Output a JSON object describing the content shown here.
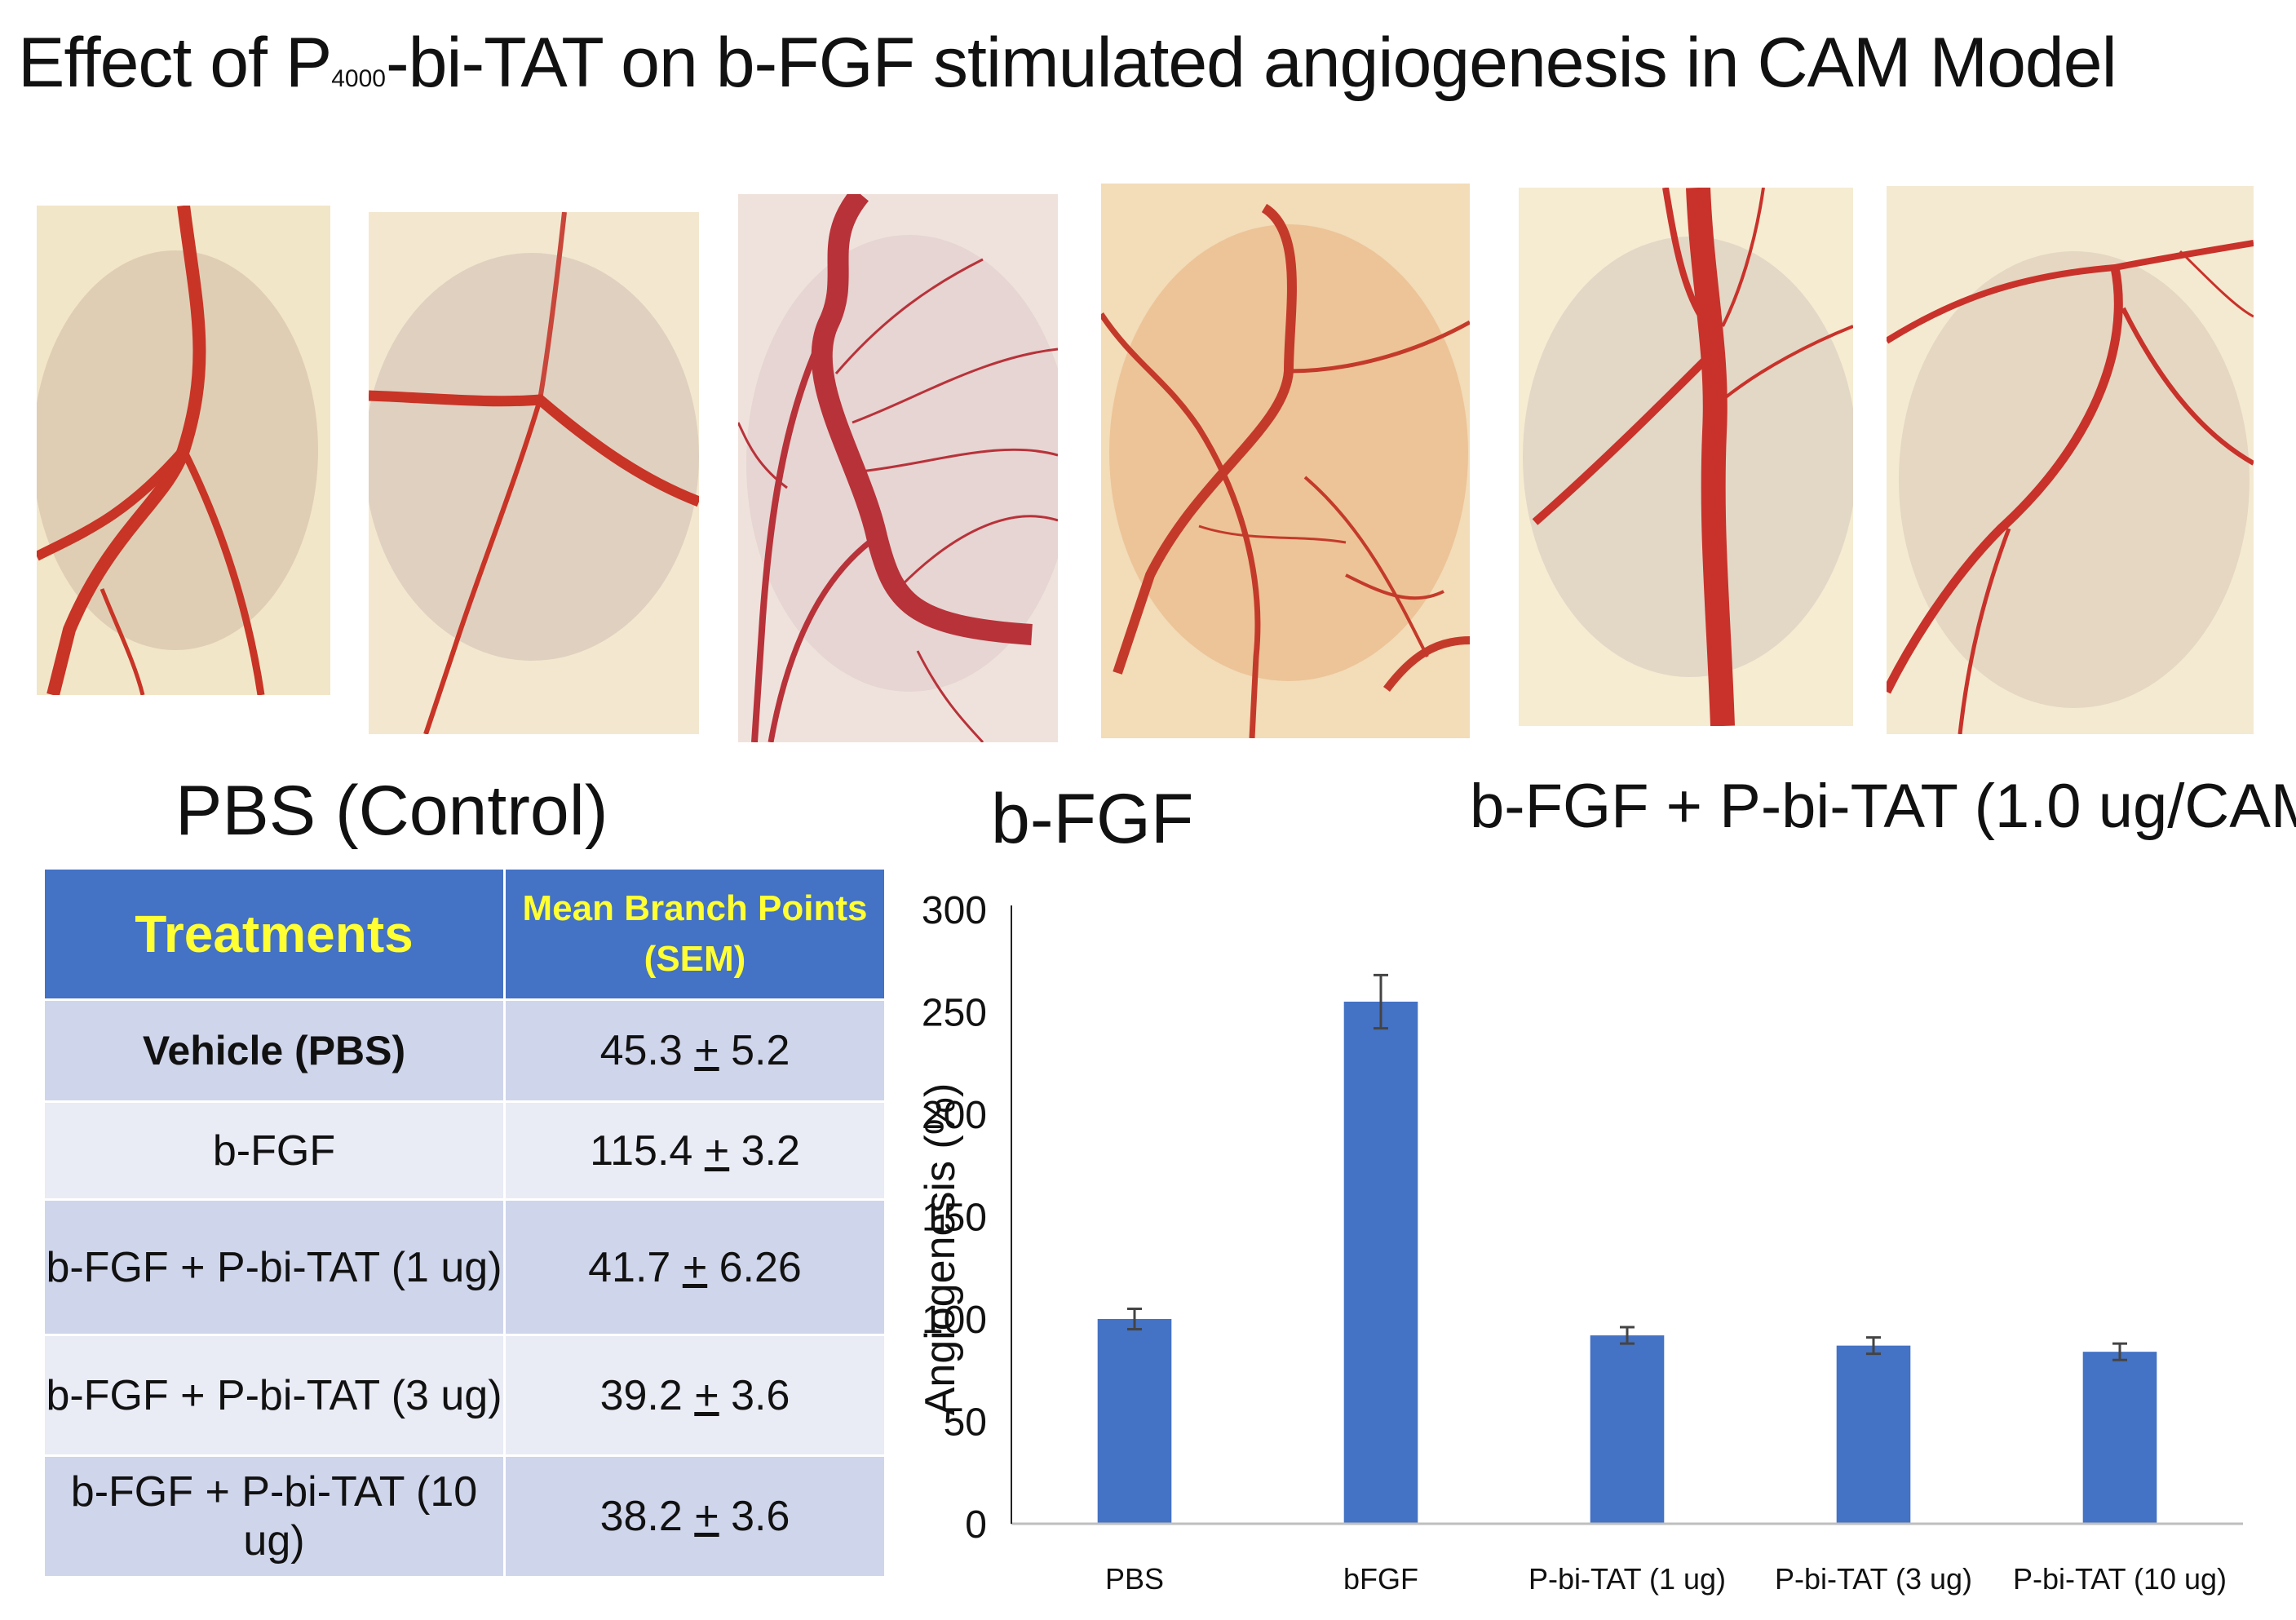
{
  "figure": {
    "title_prefix": "Effect of P",
    "title_subscript": "4000",
    "title_suffix": "-bi-TAT on b-FGF stimulated angiogenesis in CAM Model"
  },
  "photos": [
    {
      "group": "PBS (Control)",
      "description": "CAM vessel image"
    },
    {
      "group": "PBS (Control)",
      "description": "CAM vessel image"
    },
    {
      "group": "b-FGF",
      "description": "CAM vessel image"
    },
    {
      "group": "b-FGF",
      "description": "CAM vessel image"
    },
    {
      "group": "b-FGF + P-bi-TAT",
      "description": "CAM vessel image"
    },
    {
      "group": "b-FGF + P-bi-TAT",
      "description": "CAM vessel image"
    }
  ],
  "photo_labels": {
    "pbs": "PBS (Control)",
    "bfgf": "b-FGF",
    "tat": "b-FGF + P-bi-TAT (1.0 ug/CAM"
  },
  "table": {
    "header_treatments": "Treatments",
    "header_mean": "Mean Branch Points (SEM)",
    "rows": [
      {
        "treatment": "Vehicle (PBS)",
        "mean": "45.3",
        "sem": "5.2"
      },
      {
        "treatment": "b-FGF",
        "mean": "115.4",
        "sem": "3.2"
      },
      {
        "treatment": "b-FGF + P-bi-TAT (1 ug)",
        "mean": "41.7",
        "sem": "6.26"
      },
      {
        "treatment": "b-FGF + P-bi-TAT (3 ug)",
        "mean": "39.2",
        "sem": "3.6"
      },
      {
        "treatment": "b-FGF + P-bi-TAT (10 ug)",
        "mean": "38.2",
        "sem": "3.6"
      }
    ],
    "pm_symbol": "+"
  },
  "chart_data": {
    "type": "bar",
    "title": "",
    "xlabel": "",
    "ylabel": "Angiogenesis (%)",
    "categories": [
      "PBS",
      "bFGF",
      "P-bi-TAT (1 ug)",
      "P-bi-TAT (3 ug)",
      "P-bi-TAT (10 ug)"
    ],
    "values": [
      100,
      255,
      92,
      87,
      84
    ],
    "errors": [
      5,
      13,
      4,
      4,
      4
    ],
    "ylim": [
      0,
      300
    ],
    "yticks": [
      0,
      50,
      100,
      150,
      200,
      250,
      300
    ],
    "grid": false,
    "bar_color": "#4472c4"
  }
}
